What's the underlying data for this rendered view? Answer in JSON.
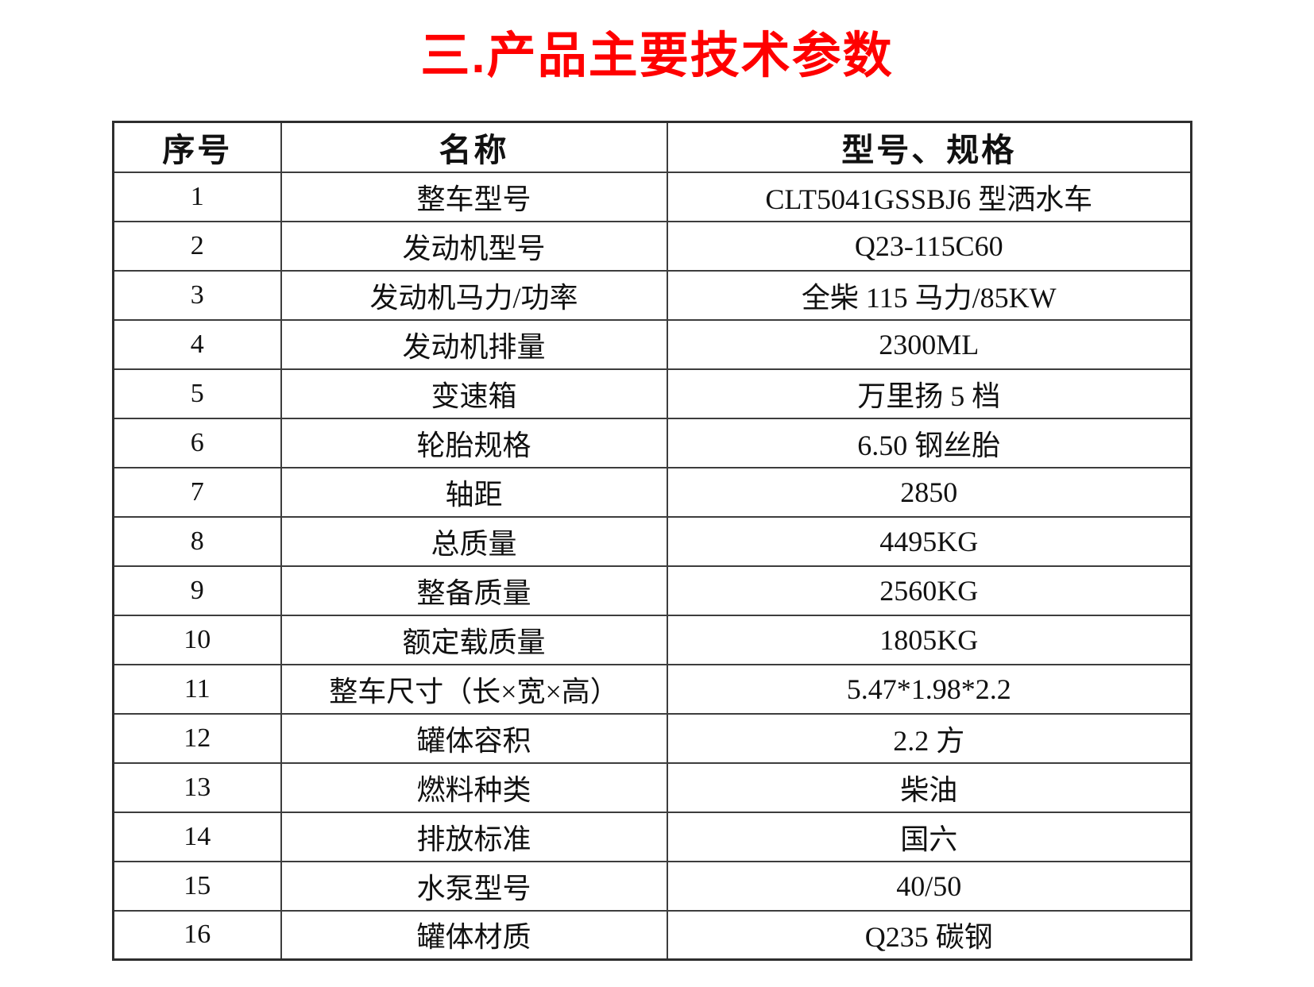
{
  "title": "三.产品主要技术参数",
  "colors": {
    "title": "#ff0000",
    "table_border": "#3d3d3d",
    "text": "#111111",
    "background": "#ffffff"
  },
  "table": {
    "headers": [
      "序号",
      "名称",
      "型号、规格"
    ],
    "rows": [
      {
        "no": "1",
        "name": "整车型号",
        "spec": "CLT5041GSSBJ6 型洒水车"
      },
      {
        "no": "2",
        "name": "发动机型号",
        "spec": "Q23-115C60"
      },
      {
        "no": "3",
        "name": "发动机马力/功率",
        "spec": "全柴 115 马力/85KW"
      },
      {
        "no": "4",
        "name": "发动机排量",
        "spec": "2300ML"
      },
      {
        "no": "5",
        "name": "变速箱",
        "spec": "万里扬 5 档"
      },
      {
        "no": "6",
        "name": "轮胎规格",
        "spec": "6.50 钢丝胎"
      },
      {
        "no": "7",
        "name": "轴距",
        "spec": "2850"
      },
      {
        "no": "8",
        "name": "总质量",
        "spec": "4495KG"
      },
      {
        "no": "9",
        "name": "整备质量",
        "spec": "2560KG"
      },
      {
        "no": "10",
        "name": "额定载质量",
        "spec": "1805KG"
      },
      {
        "no": "11",
        "name": "整车尺寸（长×宽×高）",
        "spec": "5.47*1.98*2.2"
      },
      {
        "no": "12",
        "name": "罐体容积",
        "spec": "2.2 方"
      },
      {
        "no": "13",
        "name": "燃料种类",
        "spec": "柴油"
      },
      {
        "no": "14",
        "name": "排放标准",
        "spec": "国六"
      },
      {
        "no": "15",
        "name": "水泵型号",
        "spec": "40/50"
      },
      {
        "no": "16",
        "name": "罐体材质",
        "spec": "Q235 碳钢"
      }
    ]
  }
}
